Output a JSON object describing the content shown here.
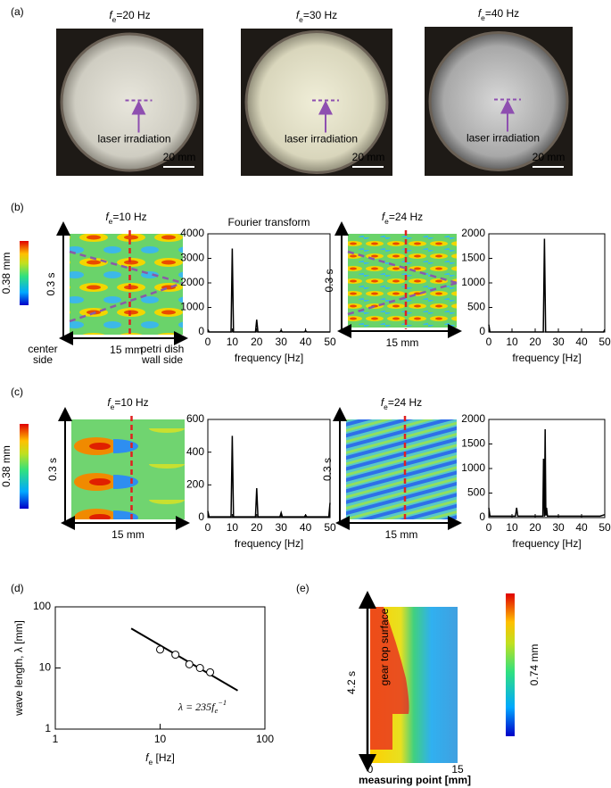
{
  "panel_labels": [
    "(a)",
    "(b)",
    "(c)",
    "(d)",
    "(e)"
  ],
  "photos": [
    {
      "title": {
        "main": "f",
        "sub": "e",
        "rest": "=20 Hz"
      },
      "annotation": "laser irradiation",
      "scale_bar": "20 mm"
    },
    {
      "title": {
        "main": "f",
        "sub": "e",
        "rest": "=30 Hz"
      },
      "annotation": "laser irradiation",
      "scale_bar": "20 mm"
    },
    {
      "title": {
        "main": "f",
        "sub": "e",
        "rest": "=40 Hz"
      },
      "annotation": "laser irradiation",
      "scale_bar": "20 mm"
    }
  ],
  "heatmaps": [
    {
      "title": {
        "main": "f",
        "sub": "e",
        "rest": "=10 Hz"
      },
      "time": "0.3 s",
      "length": "15 mm"
    },
    {
      "title": {
        "main": "f",
        "sub": "e",
        "rest": "=24 Hz"
      },
      "time": "0.3 s",
      "length": "15 mm"
    },
    {
      "title": {
        "main": "f",
        "sub": "e",
        "rest": "=10 Hz"
      },
      "time": "0.3 s",
      "length": "15 mm"
    },
    {
      "title": {
        "main": "f",
        "sub": "e",
        "rest": "=24 Hz"
      },
      "time": "0.3 s",
      "length": "15 mm"
    }
  ],
  "panel_b": {
    "left_label": [
      "center",
      "side"
    ],
    "right_label": [
      "petri dish",
      "wall side"
    ]
  },
  "colorbars": [
    "0.38 mm",
    "0.38 mm",
    "0.74 mm"
  ],
  "panel_e": {
    "time": "4.2 s",
    "annotation": "gear top surface",
    "x_start": "0",
    "x_end": "15",
    "xlabel": "measuring point [mm]"
  },
  "chart_data": [
    {
      "type": "line",
      "annotation": "Fourier transform",
      "xlabel": "frequency [Hz]",
      "color": "#000000",
      "x": [
        0,
        0.5,
        9.5,
        10,
        10.5,
        19.5,
        20,
        20.5,
        29.5,
        30,
        30.5,
        39.5,
        40,
        40.5,
        50
      ],
      "values": [
        100,
        0,
        0,
        3400,
        0,
        0,
        500,
        0,
        0,
        60,
        0,
        0,
        50,
        0,
        0
      ],
      "xlim": [
        0,
        50
      ],
      "ylim": [
        0,
        4000
      ],
      "xticks": [
        0,
        10,
        20,
        30,
        40,
        50
      ],
      "yticks": [
        0,
        1000,
        2000,
        3000,
        4000
      ]
    },
    {
      "type": "line",
      "xlabel": "frequency [Hz]",
      "color": "#000000",
      "x": [
        0,
        0.5,
        23.5,
        24,
        24.5,
        49.5,
        50
      ],
      "values": [
        150,
        0,
        0,
        1900,
        0,
        0,
        50
      ],
      "xlim": [
        0,
        50
      ],
      "ylim": [
        0,
        2000
      ],
      "xticks": [
        0,
        10,
        20,
        30,
        40,
        50
      ],
      "yticks": [
        0,
        500,
        1000,
        1500,
        2000
      ]
    },
    {
      "type": "line",
      "xlabel": "frequency [Hz]",
      "color": "#000000",
      "x": [
        0,
        0.5,
        9.5,
        10,
        10.5,
        19.5,
        20,
        20.5,
        29.5,
        30,
        30.5,
        39.5,
        40,
        40.5,
        49.5,
        50
      ],
      "values": [
        40,
        5,
        5,
        500,
        5,
        5,
        180,
        5,
        5,
        30,
        5,
        5,
        15,
        5,
        5,
        90
      ],
      "xlim": [
        0,
        50
      ],
      "ylim": [
        0,
        600
      ],
      "xticks": [
        0,
        10,
        20,
        30,
        40,
        50
      ],
      "yticks": [
        0,
        200,
        400,
        600
      ]
    },
    {
      "type": "line",
      "xlabel": "frequency [Hz]",
      "color": "#000000",
      "x": [
        0,
        0.5,
        11.5,
        12,
        12.5,
        23.3,
        23.6,
        24,
        24.3,
        24.6,
        24.9,
        25.3,
        48,
        50
      ],
      "values": [
        200,
        30,
        30,
        200,
        30,
        30,
        1200,
        20,
        1800,
        40,
        200,
        30,
        30,
        60
      ],
      "xlim": [
        0,
        50
      ],
      "ylim": [
        0,
        2000
      ],
      "xticks": [
        0,
        10,
        20,
        30,
        40,
        50
      ],
      "yticks": [
        0,
        500,
        1000,
        1500,
        2000
      ]
    },
    {
      "type": "scatter",
      "log_scale": true,
      "xlabel": {
        "main": "f",
        "sub": "e",
        "rest": " [Hz]"
      },
      "ylabel": "wave length, λ [mm]",
      "equation": {
        "main": "λ = 235f",
        "sub": "e",
        "sup": "−1"
      },
      "points": {
        "x": [
          10,
          14,
          19,
          24,
          30
        ],
        "values": [
          20,
          16.5,
          11.5,
          10,
          8.5
        ]
      },
      "fit": {
        "x": [
          5.3,
          55
        ],
        "values": [
          44.3,
          4.27
        ]
      },
      "xlim": [
        1,
        100
      ],
      "ylim": [
        1,
        100
      ],
      "xticks": [
        1,
        10,
        100
      ],
      "yticks": [
        1,
        10,
        100
      ]
    }
  ]
}
